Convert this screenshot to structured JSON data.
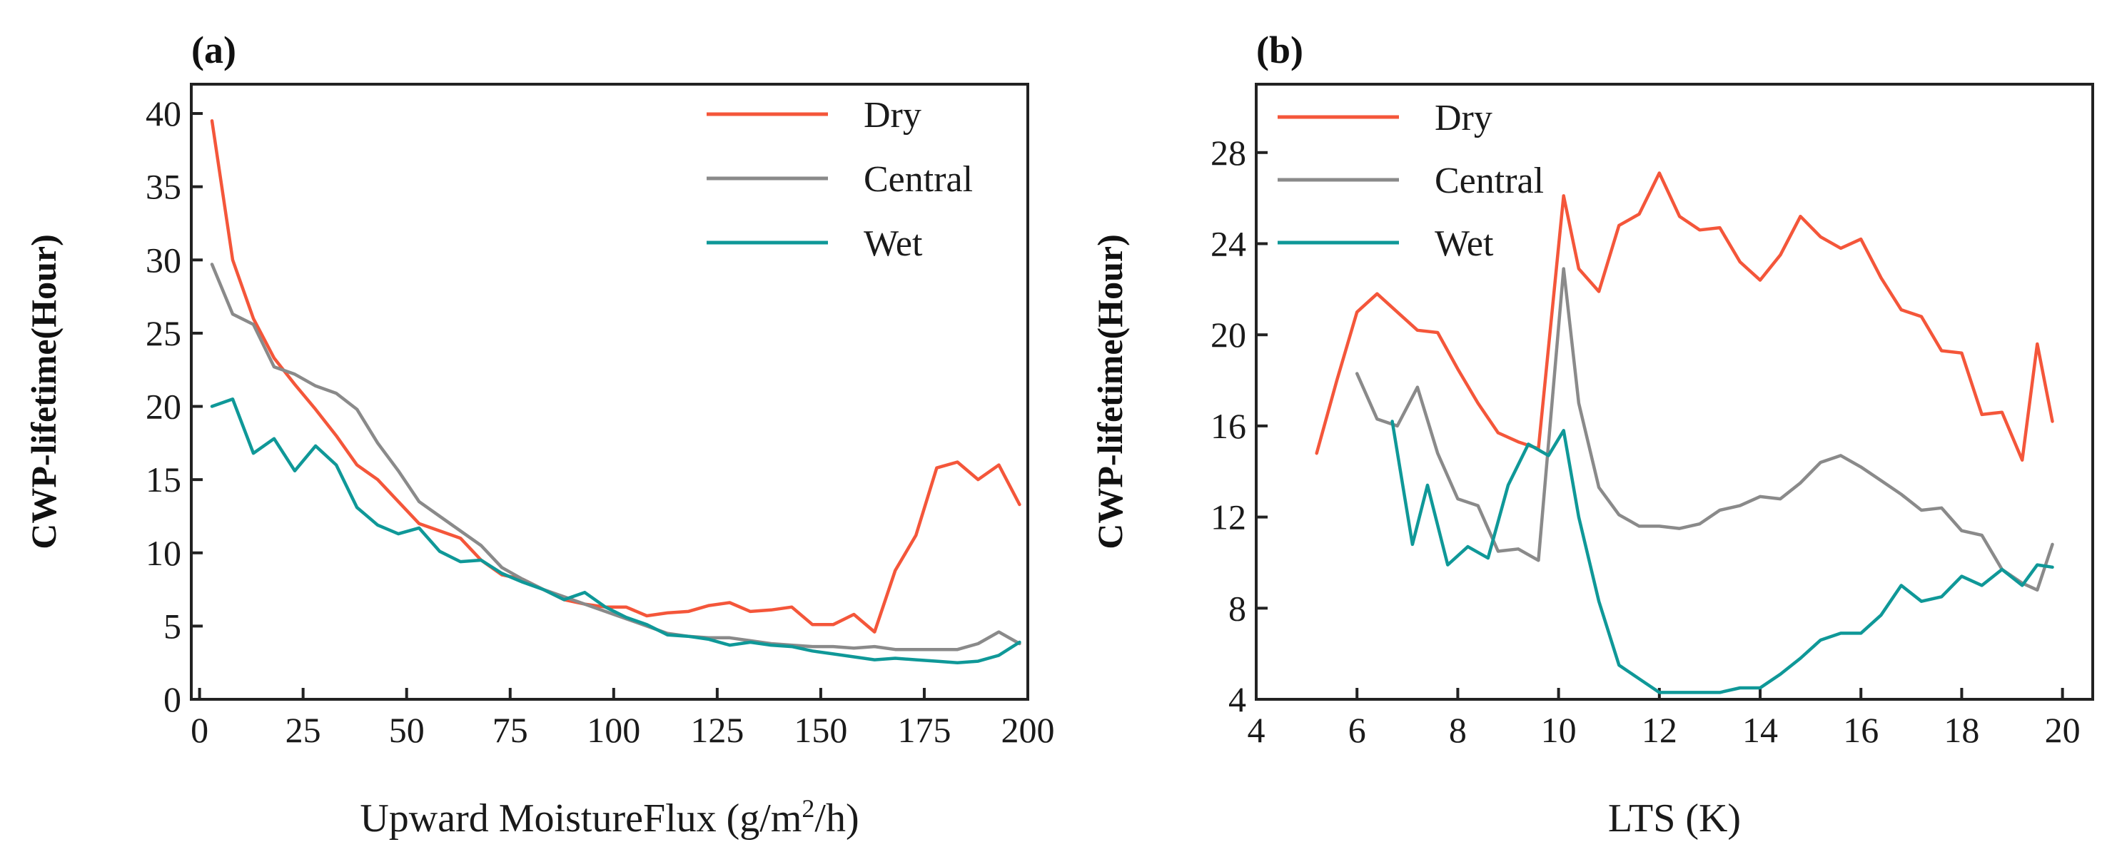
{
  "colors": {
    "dry": "#f4563a",
    "central": "#8a8a8a",
    "wet": "#0f9898"
  },
  "chart_data": [
    {
      "type": "line",
      "panel_label": "(a)",
      "xlabel": "Upward MoistureFlux (g/m",
      "xlabel_sup": "2",
      "xlabel_tail": "/h)",
      "ylabel": "CWP-lifetime(Hour)",
      "xlim": [
        -2,
        200
      ],
      "ylim": [
        0,
        42
      ],
      "xticks": [
        0,
        25,
        50,
        75,
        100,
        125,
        150,
        175,
        200
      ],
      "yticks": [
        0,
        5,
        10,
        15,
        20,
        25,
        30,
        35,
        40
      ],
      "legend": {
        "position": "top-right",
        "entries": [
          "Dry",
          "Central",
          "Wet"
        ]
      },
      "series": [
        {
          "name": "Dry",
          "color_key": "dry",
          "x": [
            3,
            8,
            13,
            18,
            23,
            28,
            33,
            38,
            43,
            48,
            53,
            58,
            63,
            68,
            73,
            78,
            83,
            88,
            93,
            98,
            103,
            108,
            113,
            118,
            123,
            128,
            133,
            138,
            143,
            148,
            153,
            158,
            163,
            168,
            173,
            178,
            183,
            188,
            193,
            198
          ],
          "y": [
            39.5,
            30,
            26,
            23.3,
            21.5,
            19.8,
            18,
            16,
            15,
            13.5,
            12,
            11.5,
            11,
            9.5,
            8.5,
            8.2,
            7.5,
            6.8,
            6.5,
            6.3,
            6.3,
            5.7,
            5.9,
            6.0,
            6.4,
            6.6,
            6.0,
            6.1,
            6.3,
            5.1,
            5.1,
            5.8,
            4.6,
            8.8,
            11.2,
            15.8,
            16.2,
            15.0,
            16.0,
            13.3
          ]
        },
        {
          "name": "Central",
          "color_key": "central",
          "x": [
            3,
            8,
            13,
            18,
            23,
            28,
            33,
            38,
            43,
            48,
            53,
            58,
            63,
            68,
            73,
            78,
            83,
            88,
            93,
            98,
            103,
            108,
            113,
            118,
            123,
            128,
            133,
            138,
            143,
            148,
            153,
            158,
            163,
            168,
            173,
            178,
            183,
            188,
            193,
            198
          ],
          "y": [
            29.7,
            26.3,
            25.6,
            22.7,
            22.2,
            21.4,
            20.9,
            19.8,
            17.5,
            15.6,
            13.5,
            12.5,
            11.5,
            10.5,
            9.0,
            8.2,
            7.5,
            7.0,
            6.5,
            6.0,
            5.5,
            5.0,
            4.5,
            4.3,
            4.2,
            4.2,
            4.0,
            3.8,
            3.7,
            3.6,
            3.6,
            3.5,
            3.6,
            3.4,
            3.4,
            3.4,
            3.4,
            3.8,
            4.6,
            3.8
          ]
        },
        {
          "name": "Wet",
          "color_key": "wet",
          "x": [
            3,
            8,
            13,
            18,
            23,
            28,
            33,
            38,
            43,
            48,
            53,
            58,
            63,
            68,
            73,
            78,
            83,
            88,
            93,
            98,
            103,
            108,
            113,
            118,
            123,
            128,
            133,
            138,
            143,
            148,
            153,
            158,
            163,
            168,
            173,
            178,
            183,
            188,
            193,
            198
          ],
          "y": [
            20,
            20.5,
            16.8,
            17.8,
            15.6,
            17.3,
            16,
            13.1,
            11.9,
            11.3,
            11.7,
            10.1,
            9.4,
            9.5,
            8.6,
            8.0,
            7.5,
            6.8,
            7.3,
            6.3,
            5.6,
            5.1,
            4.4,
            4.3,
            4.1,
            3.7,
            3.9,
            3.7,
            3.6,
            3.3,
            3.1,
            2.9,
            2.7,
            2.8,
            2.7,
            2.6,
            2.5,
            2.6,
            3.0,
            3.9
          ]
        }
      ]
    },
    {
      "type": "line",
      "panel_label": "(b)",
      "xlabel": "LTS (K)",
      "ylabel": "CWP-lifetime(Hour)",
      "xlim": [
        4,
        20.6
      ],
      "ylim": [
        4,
        31
      ],
      "xticks": [
        4,
        6,
        8,
        10,
        12,
        14,
        16,
        18,
        20
      ],
      "yticks": [
        4,
        8,
        12,
        16,
        20,
        24,
        28
      ],
      "legend": {
        "position": "top-left",
        "entries": [
          "Dry",
          "Central",
          "Wet"
        ]
      },
      "series": [
        {
          "name": "Dry",
          "color_key": "dry",
          "x": [
            5.2,
            5.6,
            6.0,
            6.4,
            6.8,
            7.2,
            7.6,
            8.0,
            8.4,
            8.8,
            9.2,
            9.6,
            10.1,
            10.4,
            10.8,
            11.2,
            11.6,
            12.0,
            12.4,
            12.8,
            13.2,
            13.6,
            14.0,
            14.4,
            14.8,
            15.2,
            15.6,
            16.0,
            16.4,
            16.8,
            17.2,
            17.6,
            18.0,
            18.4,
            18.8,
            19.2,
            19.5,
            19.8
          ],
          "y": [
            14.8,
            18,
            21,
            21.8,
            21,
            20.2,
            20.1,
            18.5,
            17,
            15.7,
            15.3,
            15,
            26.1,
            22.9,
            21.9,
            24.8,
            25.3,
            27.1,
            25.2,
            24.6,
            24.7,
            23.2,
            22.4,
            23.5,
            25.2,
            24.3,
            23.8,
            24.2,
            22.5,
            21.1,
            20.8,
            19.3,
            19.2,
            16.5,
            16.6,
            14.5,
            19.6,
            16.2
          ]
        },
        {
          "name": "Central",
          "color_key": "central",
          "x": [
            6.0,
            6.4,
            6.8,
            7.2,
            7.6,
            8.0,
            8.4,
            8.8,
            9.2,
            9.6,
            10.1,
            10.4,
            10.8,
            11.2,
            11.6,
            12.0,
            12.4,
            12.8,
            13.2,
            13.6,
            14.0,
            14.4,
            14.8,
            15.2,
            15.6,
            16.0,
            16.4,
            16.8,
            17.2,
            17.6,
            18.0,
            18.4,
            18.8,
            19.2,
            19.5,
            19.8
          ],
          "y": [
            18.3,
            16.3,
            16.0,
            17.7,
            14.8,
            12.8,
            12.5,
            10.5,
            10.6,
            10.1,
            22.9,
            17,
            13.3,
            12.1,
            11.6,
            11.6,
            11.5,
            11.7,
            12.3,
            12.5,
            12.9,
            12.8,
            13.5,
            14.4,
            14.7,
            14.2,
            13.6,
            13.0,
            12.3,
            12.4,
            11.4,
            11.2,
            9.7,
            9.1,
            8.8,
            10.8
          ]
        },
        {
          "name": "Wet",
          "color_key": "wet",
          "x": [
            6.7,
            7.1,
            7.4,
            7.8,
            8.2,
            8.6,
            9.0,
            9.4,
            9.8,
            10.1,
            10.4,
            10.8,
            11.2,
            11.6,
            12.0,
            12.4,
            12.8,
            13.2,
            13.6,
            14.0,
            14.4,
            14.8,
            15.2,
            15.6,
            16.0,
            16.4,
            16.8,
            17.2,
            17.6,
            18.0,
            18.4,
            18.8,
            19.2,
            19.5,
            19.8
          ],
          "y": [
            16.2,
            10.8,
            13.4,
            9.9,
            10.7,
            10.2,
            13.4,
            15.2,
            14.7,
            15.8,
            12.0,
            8.3,
            5.5,
            4.9,
            4.3,
            4.3,
            4.3,
            4.3,
            4.5,
            4.5,
            5.1,
            5.8,
            6.6,
            6.9,
            6.9,
            7.7,
            9.0,
            8.3,
            8.5,
            9.4,
            9.0,
            9.7,
            9.0,
            9.9,
            9.8
          ]
        }
      ]
    }
  ]
}
